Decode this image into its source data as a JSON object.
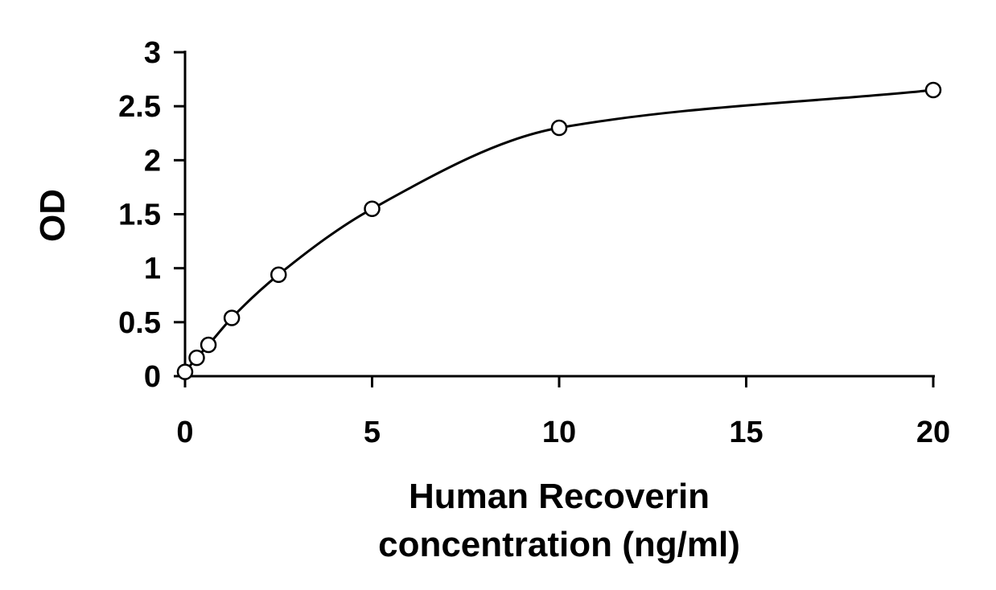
{
  "chart_data": {
    "type": "scatter",
    "xlabel": [
      "Human Recoverin",
      "concentration (ng/ml)"
    ],
    "ylabel": "OD",
    "xlim": [
      0,
      20
    ],
    "ylim": [
      0,
      3
    ],
    "x_ticks": [
      0,
      5,
      10,
      15,
      20
    ],
    "y_ticks": [
      0,
      0.5,
      1,
      1.5,
      2,
      2.5,
      3
    ],
    "grid": false,
    "legend": "none",
    "series": [
      {
        "x": [
          0,
          0.312,
          0.625,
          1.25,
          2.5,
          5,
          10,
          20
        ],
        "y": [
          0.04,
          0.17,
          0.29,
          0.54,
          0.94,
          1.55,
          2.3,
          2.65
        ]
      }
    ],
    "curve": "smooth fitted line through points",
    "colors": {
      "line": "#000000",
      "marker_fill": "#ffffff"
    }
  }
}
